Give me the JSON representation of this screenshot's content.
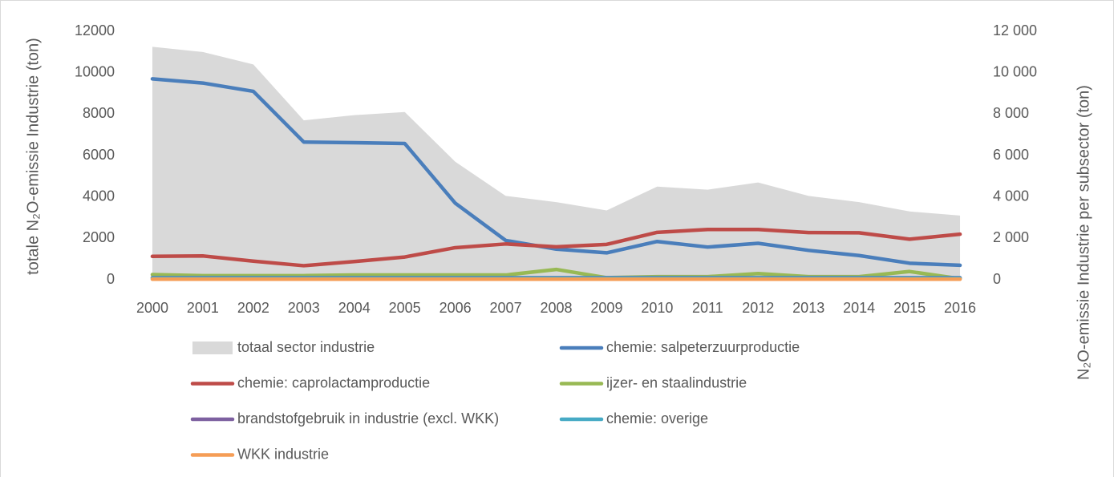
{
  "chart_data": {
    "type": "line",
    "y_label": "totale N₂O-emissie Industrie (ton)",
    "y2_label": "N₂O-emissie Industrie per subsector (ton)",
    "categories": [
      "2000",
      "2001",
      "2002",
      "2003",
      "2004",
      "2005",
      "2006",
      "2007",
      "2008",
      "2009",
      "2010",
      "2011",
      "2012",
      "2013",
      "2014",
      "2015",
      "2016"
    ],
    "ylim": [
      0,
      12000
    ],
    "yticks": [
      0,
      2000,
      4000,
      6000,
      8000,
      10000,
      12000
    ],
    "y2lim": [
      0,
      12000
    ],
    "y2ticks": [
      0,
      {
        "value": 2000,
        "label": "2 000"
      },
      {
        "value": 4000,
        "label": "4 000"
      },
      {
        "value": 6000,
        "label": "6 000"
      },
      {
        "value": 8000,
        "label": "8 000"
      },
      {
        "value": 10000,
        "label": "10 000"
      },
      {
        "value": 12000,
        "label": "12 000"
      }
    ],
    "series": [
      {
        "name": "totaal sector industrie",
        "type": "area",
        "color": "#d9d9d9",
        "values": [
          11250,
          11000,
          10400,
          7700,
          7950,
          8100,
          5700,
          4050,
          3750,
          3350,
          4500,
          4350,
          4700,
          4050,
          3750,
          3300,
          3100
        ]
      },
      {
        "name": "chemie: salpeterzuurproductie",
        "color": "#4a7ebb",
        "axis": "y2",
        "values": [
          9700,
          9500,
          9100,
          6650,
          6620,
          6580,
          3700,
          1900,
          1480,
          1300,
          1850,
          1580,
          1760,
          1420,
          1170,
          800,
          700
        ]
      },
      {
        "name": "chemie: caprolactamproductie",
        "color": "#be4b48",
        "axis": "y2",
        "values": [
          1130,
          1150,
          900,
          680,
          880,
          1100,
          1550,
          1730,
          1590,
          1710,
          2290,
          2430,
          2430,
          2280,
          2270,
          1960,
          2200
        ]
      },
      {
        "name": "ijzer- en staalindustrie",
        "color": "#98b954",
        "axis": "y2",
        "values": [
          250,
          200,
          200,
          200,
          230,
          230,
          230,
          230,
          500,
          100,
          150,
          150,
          300,
          150,
          150,
          400,
          50
        ]
      },
      {
        "name": "brandstofgebruik in industrie (excl. WKK)",
        "color": "#7d60a0",
        "axis": "y2",
        "values": [
          100,
          100,
          100,
          100,
          100,
          100,
          100,
          100,
          100,
          100,
          100,
          100,
          100,
          100,
          100,
          100,
          100
        ]
      },
      {
        "name": "chemie: overige",
        "color": "#46aac5",
        "axis": "y2",
        "values": [
          80,
          80,
          80,
          80,
          80,
          80,
          80,
          80,
          80,
          80,
          80,
          80,
          80,
          80,
          80,
          80,
          80
        ]
      },
      {
        "name": "WKK industrie",
        "color": "#f59d56",
        "axis": "y2",
        "values": [
          30,
          30,
          30,
          30,
          30,
          30,
          30,
          30,
          30,
          30,
          30,
          30,
          30,
          30,
          30,
          30,
          30
        ]
      }
    ]
  }
}
